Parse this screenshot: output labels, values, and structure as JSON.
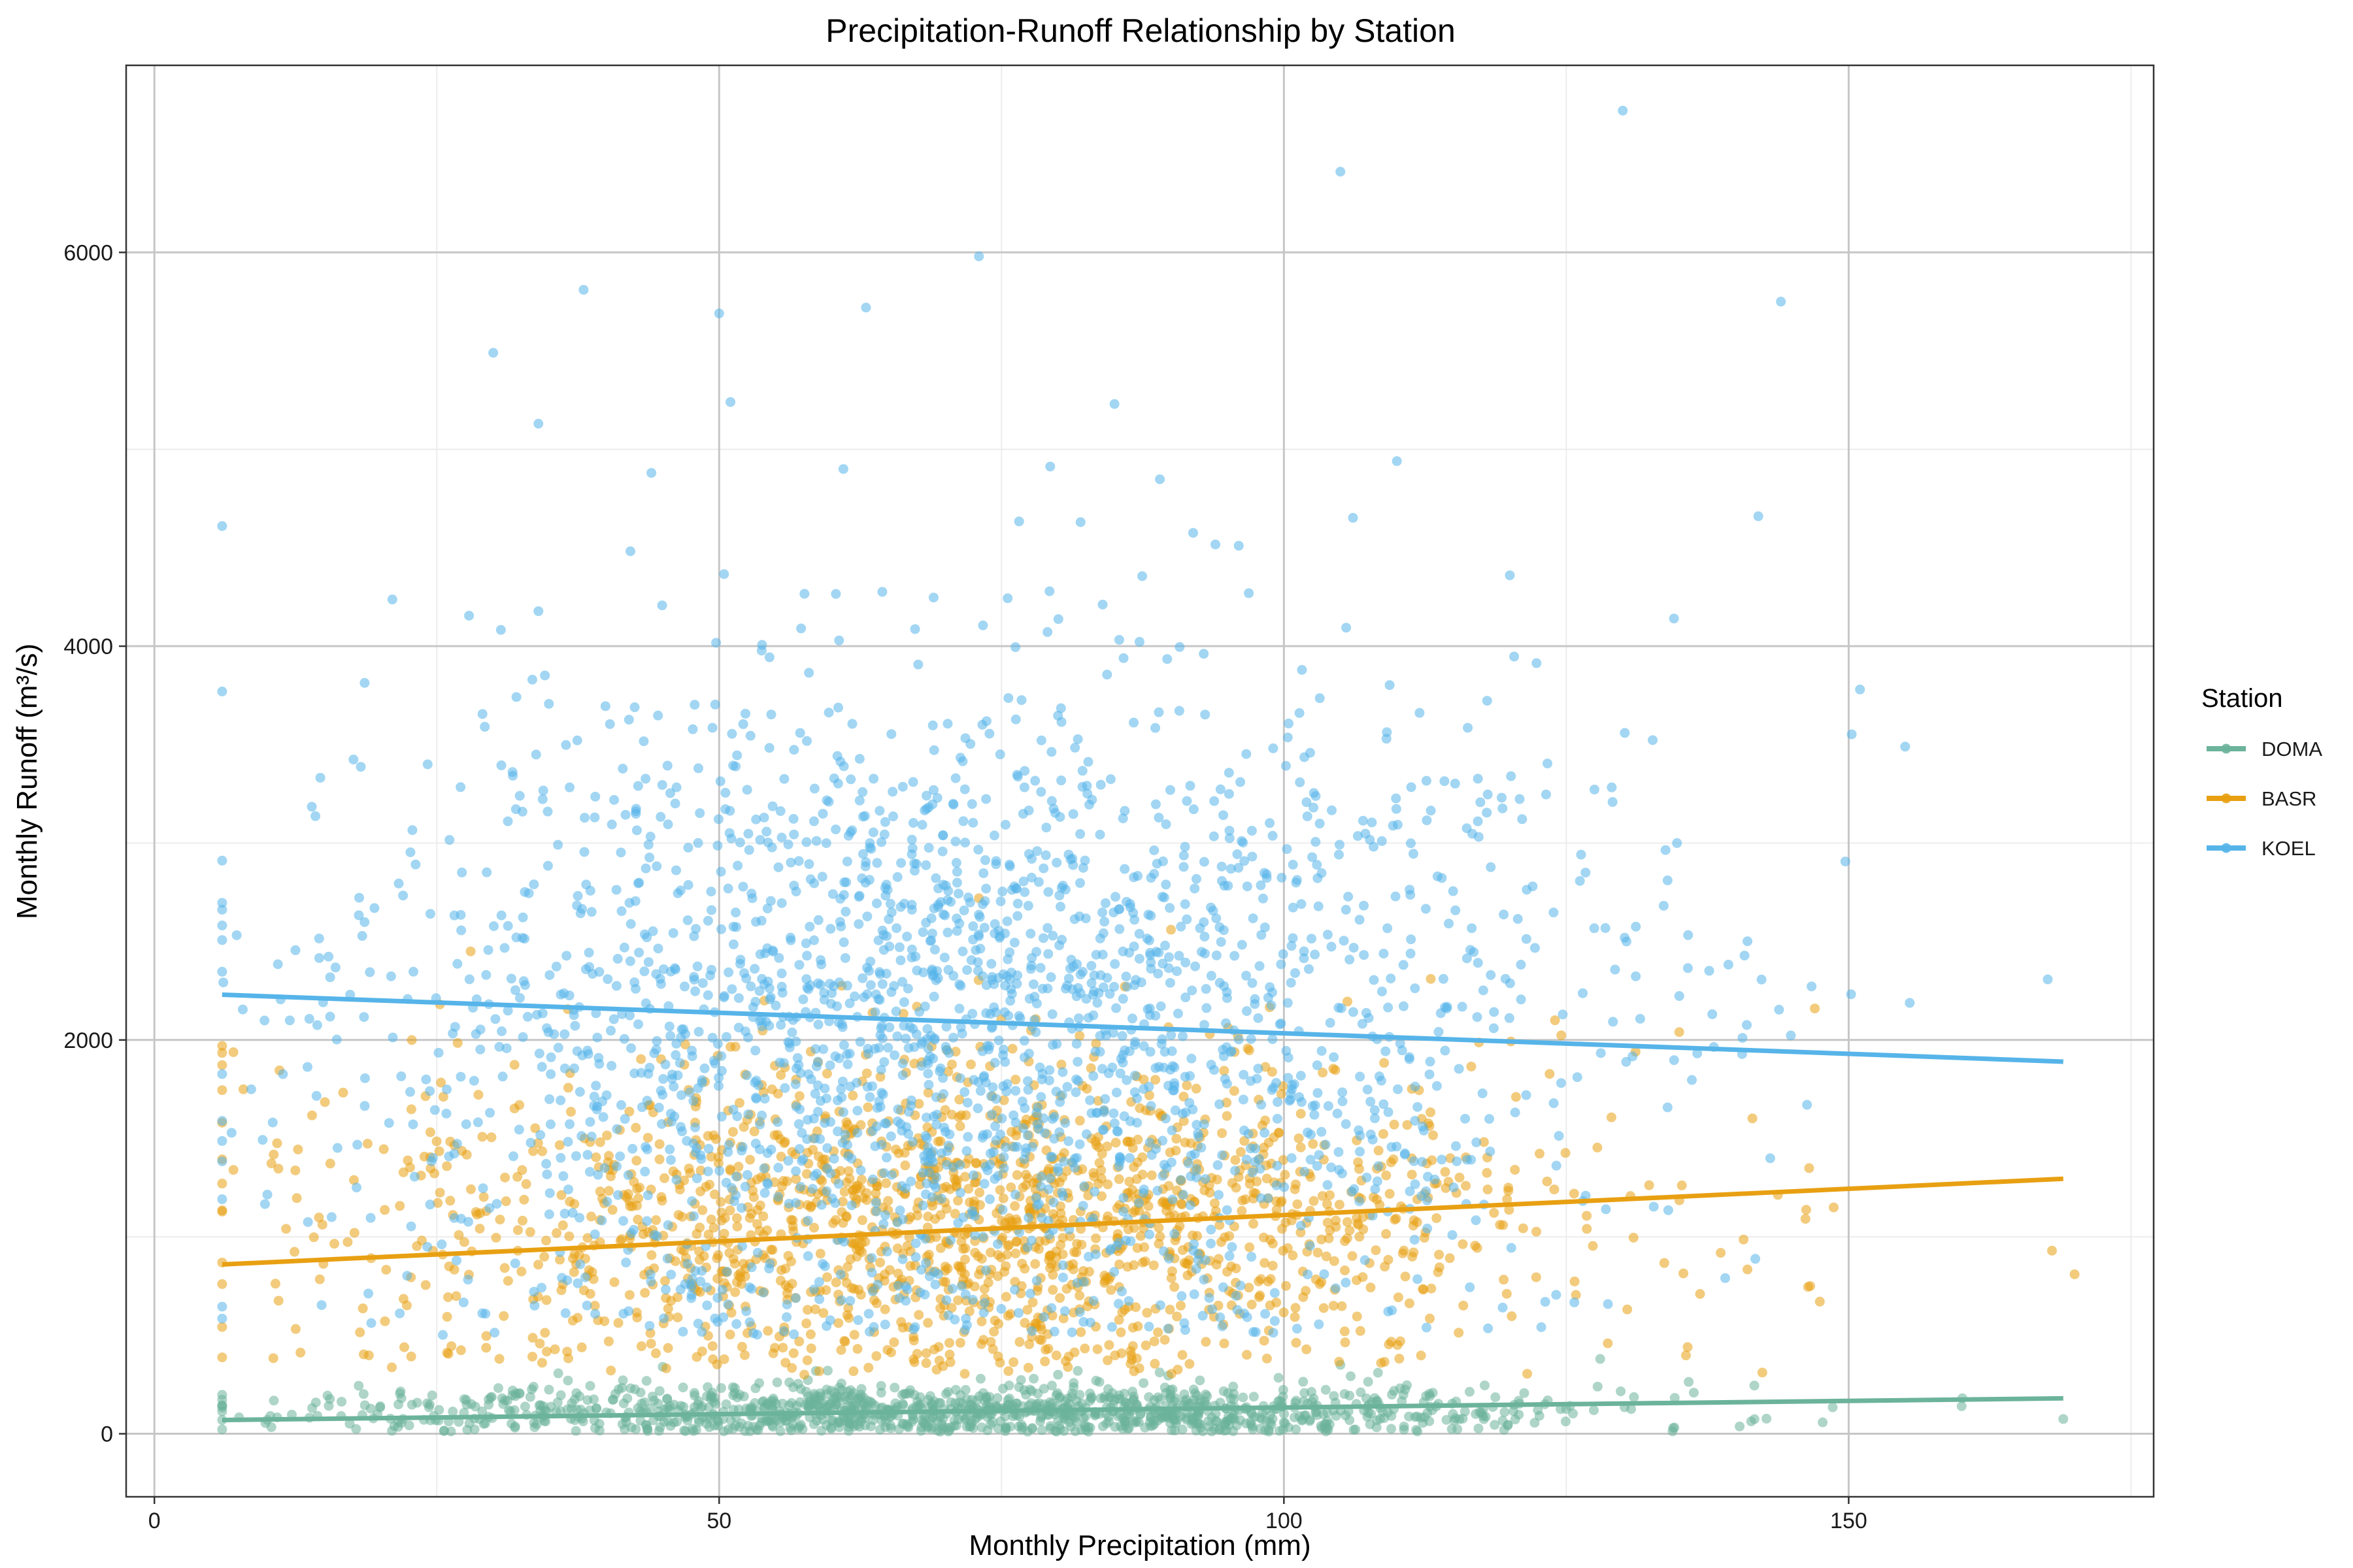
{
  "chart_data": {
    "type": "scatter",
    "title": "Precipitation-Runoff Relationship by Station",
    "xlabel": "Monthly Precipitation (mm)",
    "ylabel": "Monthly Runoff (m³/s)",
    "xlim": [
      -2.5,
      177
    ],
    "ylim": [
      -320,
      6950
    ],
    "x_ticks": [
      0,
      50,
      100,
      150
    ],
    "x_minor_ticks": [
      25,
      75,
      125,
      175
    ],
    "y_ticks": [
      0,
      2000,
      4000,
      6000
    ],
    "y_minor_ticks": [
      1000,
      3000,
      5000
    ],
    "grid": true,
    "legend": {
      "title": "Station",
      "placement": "right"
    },
    "series": [
      {
        "name": "DOMA",
        "color": "#6BB39A",
        "trend": {
          "x": [
            6,
            169
          ],
          "y": [
            70,
            180
          ]
        },
        "cloud": {
          "n": 1200,
          "xmean": 72,
          "xsd": 27,
          "ymean": 115,
          "ysd": 70,
          "ymin": 10
        },
        "points": [
          [
            6,
            70
          ],
          [
            20,
            140
          ],
          [
            45,
            340
          ],
          [
            80,
            300
          ],
          [
            105,
            350
          ],
          [
            128,
            380
          ],
          [
            160,
            140
          ],
          [
            169,
            75
          ]
        ]
      },
      {
        "name": "BASR",
        "color": "#E8A012",
        "trend": {
          "x": [
            6,
            169
          ],
          "y": [
            860,
            1295
          ]
        },
        "cloud": {
          "n": 1700,
          "xmean": 72,
          "xsd": 27,
          "ymean": 1080,
          "ysd": 420,
          "ymin": 300
        },
        "points": [
          [
            6,
            1970
          ],
          [
            7,
            1340
          ],
          [
            28,
            2450
          ],
          [
            54,
            2200
          ],
          [
            73,
            2720
          ],
          [
            90,
            2560
          ],
          [
            113,
            2310
          ],
          [
            124,
            2100
          ],
          [
            135,
            2040
          ],
          [
            147,
            2160
          ],
          [
            168,
            930
          ],
          [
            170,
            810
          ]
        ]
      },
      {
        "name": "KOEL",
        "color": "#56B4E9",
        "trend": {
          "x": [
            6,
            169
          ],
          "y": [
            2230,
            1890
          ]
        },
        "cloud": {
          "n": 2300,
          "xmean": 72,
          "xsd": 27,
          "ymean": 2100,
          "ysd": 850,
          "ymin": 500
        },
        "points": [
          [
            6,
            4610
          ],
          [
            6,
            3770
          ],
          [
            30,
            5490
          ],
          [
            38,
            5810
          ],
          [
            50,
            5690
          ],
          [
            51,
            5240
          ],
          [
            63,
            5720
          ],
          [
            73,
            5980
          ],
          [
            85,
            5230
          ],
          [
            105,
            6410
          ],
          [
            110,
            4940
          ],
          [
            130,
            6720
          ],
          [
            142,
            4660
          ],
          [
            144,
            5750
          ],
          [
            151,
            3780
          ],
          [
            155,
            3490
          ],
          [
            34,
            5130
          ],
          [
            44,
            4880
          ],
          [
            82,
            4630
          ],
          [
            61,
            4900
          ],
          [
            96,
            4510
          ],
          [
            120,
            4360
          ]
        ]
      }
    ]
  }
}
